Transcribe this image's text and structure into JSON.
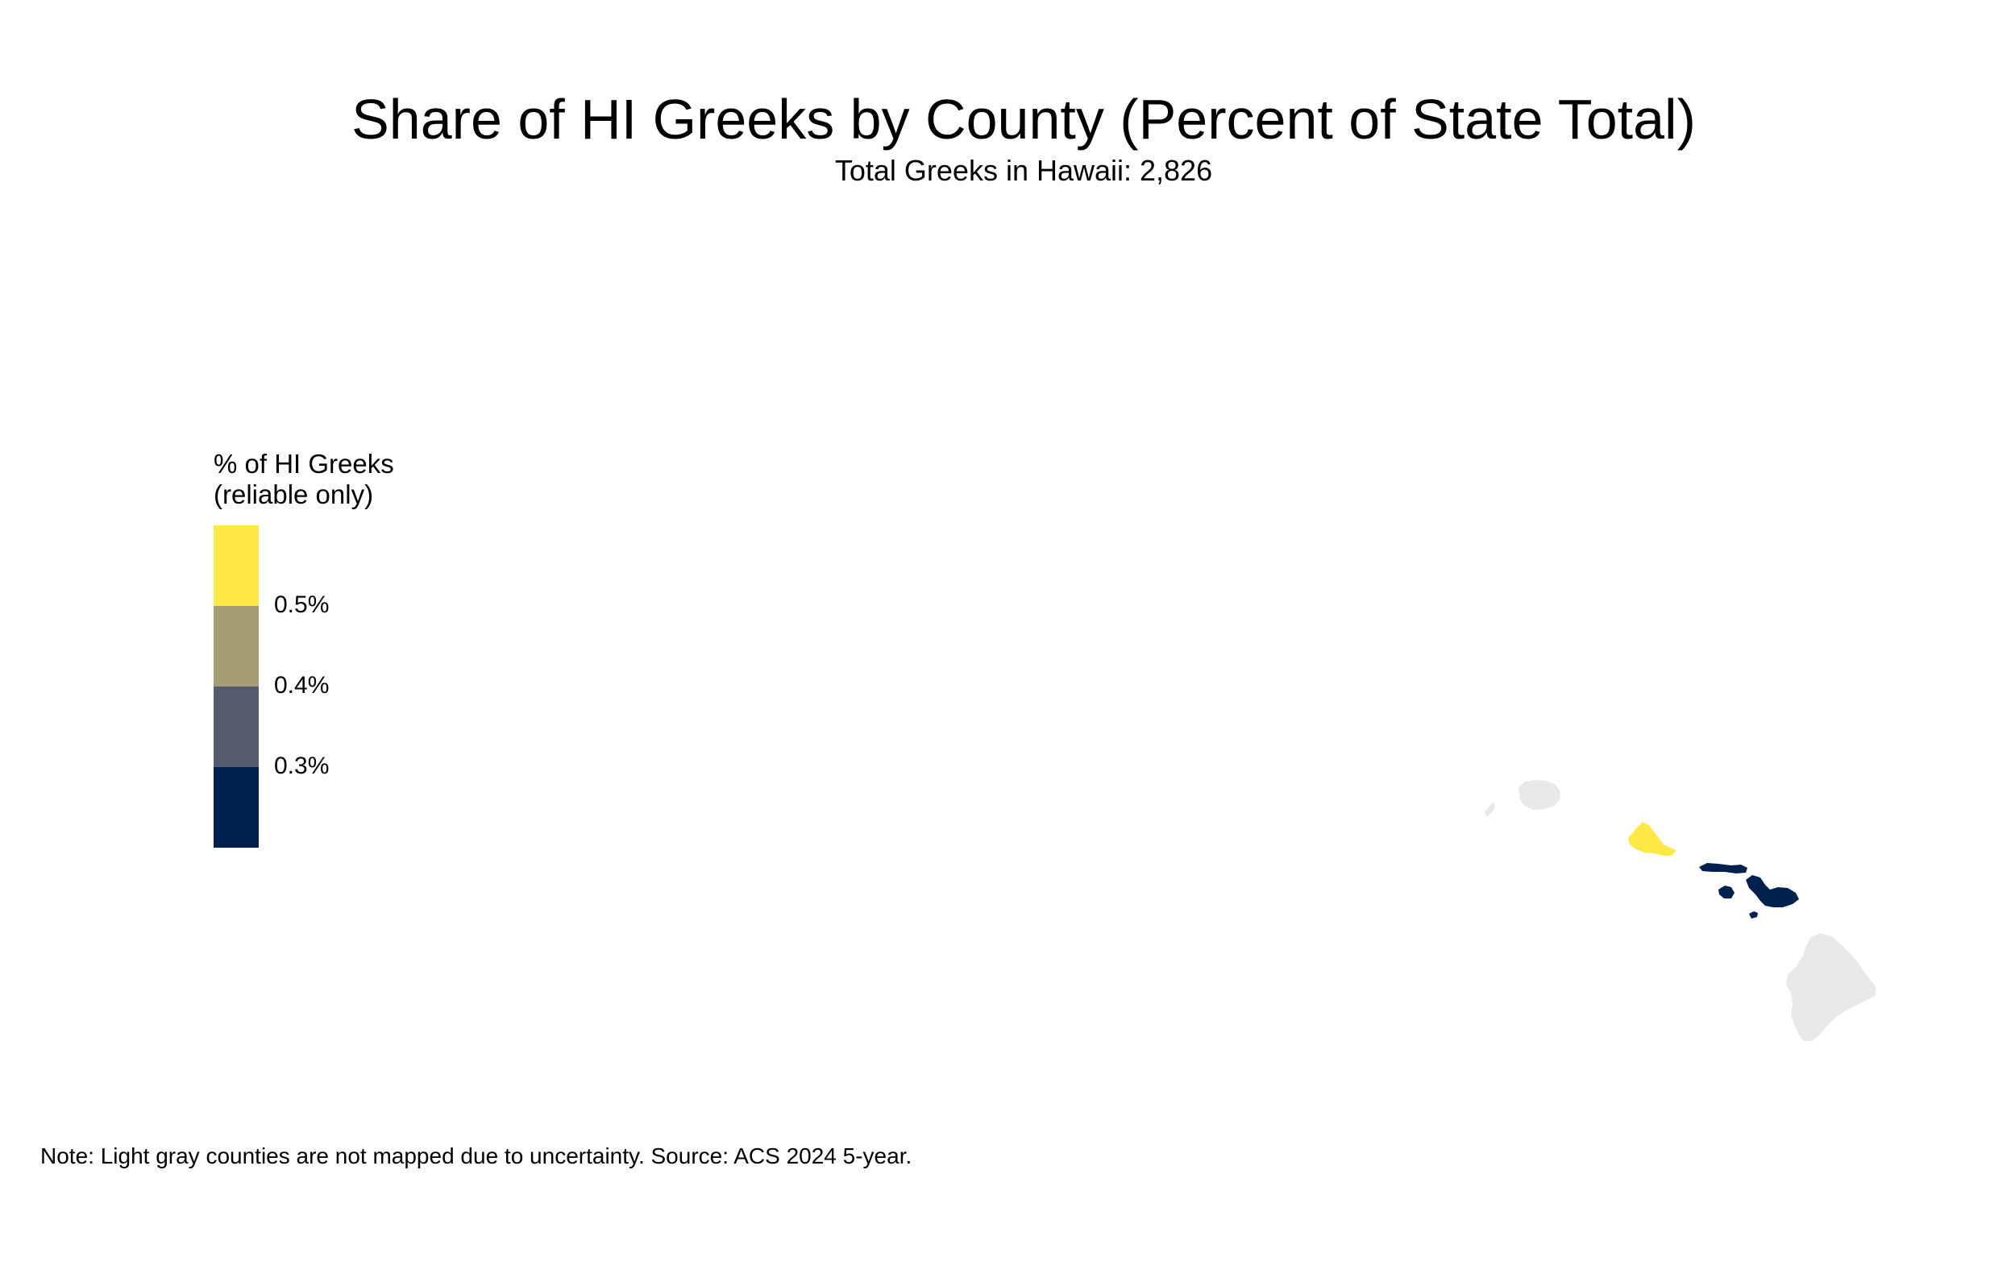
{
  "title": "Share of HI Greeks by County (Percent of State Total)",
  "subtitle": "Total Greeks in Hawaii: 2,826",
  "legend": {
    "title_lines": [
      "% of HI Greeks",
      "(reliable only)"
    ],
    "bins": [
      {
        "color": "#FFE945"
      },
      {
        "color": "#A69D75"
      },
      {
        "color": "#575C6D"
      },
      {
        "color": "#00204D"
      }
    ],
    "breaks": [
      "0.5%",
      "0.4%",
      "0.3%"
    ]
  },
  "note": "Note: Light gray counties are not mapped due to uncertainty. Source: ACS 2024 5-year.",
  "colors": {
    "unreliable": "#E8E8E8",
    "honolulu": "#FFE945",
    "maui": "#00204D"
  },
  "chart_data": {
    "type": "choropleth",
    "title": "Share of HI Greeks by County (Percent of State Total)",
    "subtitle": "Total Greeks in Hawaii: 2,826",
    "legend_title": "% of HI Greeks (reliable only)",
    "legend_breaks": [
      "0.5%",
      "0.4%",
      "0.3%"
    ],
    "regions": [
      {
        "county": "Kauai",
        "class": "not mapped"
      },
      {
        "county": "Honolulu",
        "class": "above 0.5%"
      },
      {
        "county": "Maui",
        "class": "below 0.3%"
      },
      {
        "county": "Hawaii",
        "class": "not mapped"
      }
    ]
  }
}
